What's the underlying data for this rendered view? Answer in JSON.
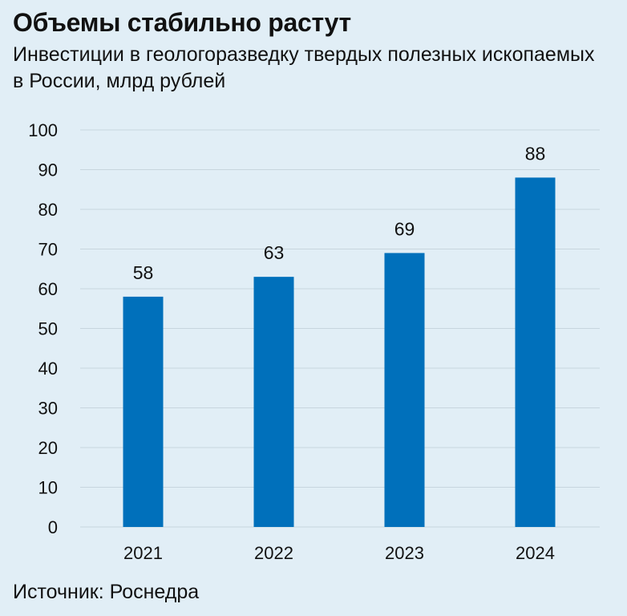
{
  "header": {
    "title": "Объемы стабильно растут",
    "subtitle": "Инвестиции в геологоразведку твердых полезных ископаемых в России, млрд рублей"
  },
  "footer": {
    "source": "Источник: Роснедра"
  },
  "colors": {
    "background": "#e1eef6",
    "bar": "#0070bb",
    "gridline": "#c7d5de",
    "text": "#111111"
  },
  "chart_data": {
    "type": "bar",
    "title": "Объемы стабильно растут",
    "subtitle": "Инвестиции в геологоразведку твердых полезных ископаемых в России, млрд рублей",
    "xlabel": "",
    "ylabel": "",
    "categories": [
      "2021",
      "2022",
      "2023",
      "2024"
    ],
    "values": [
      58,
      63,
      69,
      88
    ],
    "data_labels": [
      "58",
      "63",
      "69",
      "88"
    ],
    "ylim": [
      0,
      100
    ],
    "yticks": [
      0,
      10,
      20,
      30,
      40,
      50,
      60,
      70,
      80,
      90,
      100
    ],
    "ytick_labels": [
      "0",
      "10",
      "20",
      "30",
      "40",
      "50",
      "60",
      "70",
      "80",
      "90",
      "100"
    ],
    "grid": true,
    "legend": "none"
  }
}
